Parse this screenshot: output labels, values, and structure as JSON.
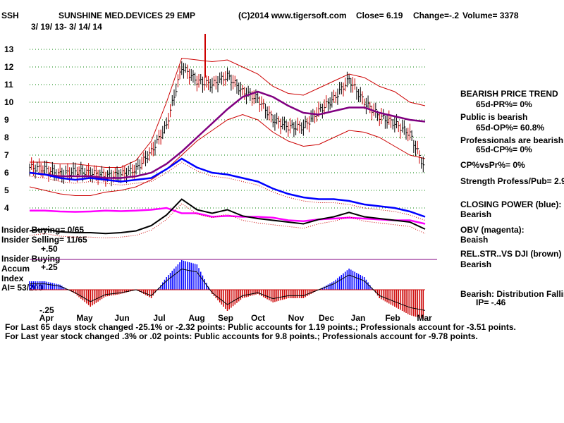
{
  "header": {
    "ticker": "SSH",
    "name": "SUNSHINE MED.DEVICES 29 EMP",
    "copyright": "(C)2014 www.tigersoft.com",
    "close": "Close=  6.19",
    "change": "Change=-.2",
    "volume": "Volume= 3378",
    "date_range": "3/ 19/ 13- 3/ 14/ 14"
  },
  "left_labels": {
    "insider_buying_count": "Insider Buying= 0/65",
    "insider_selling_count": "Insider Selling= 11/65",
    "insider_buying": "Insider Buying",
    "accum": "Accum",
    "index": "Index",
    "ai": "AI= 53/200",
    "plus50": "+.50",
    "plus25": "+.25",
    "minus25": "-.25"
  },
  "right_panel": {
    "bearish_price_trend": "BEARISH PRICE TREND",
    "pr": "65d-PR%= 0%",
    "public_bearish": "Public is bearish",
    "op": "65d-OP%= 60.8%",
    "professionals_bearish": "Professionals are bearish",
    "cp": "65d-CP%= 0%",
    "cp_vs_pr": "CP%vsPr%=  0%",
    "strength": "Strength Profess/Pub= 2.9",
    "closing_power": "CLOSING POWER (blue):",
    "closing_power_value": "Bearish",
    "obv": "OBV (magenta):",
    "obv_value": "Beaish",
    "relstr": "REL.STR..VS DJI (brown)",
    "relstr_value": "Bearish",
    "distribution": "Bearish: Distribution Falling",
    "ip": "IP= -.46"
  },
  "footer": {
    "line1": "For Last 65 days stock changed -25.1% or -2.32 points:  Public accounts for  1.19 points.;  Professionals account for -3.51 points.",
    "line2": "For Last year stock changed  .3% or  .02 points:  Public accounts for  9.8 points.;  Professionals account for -9.78 points."
  },
  "colors": {
    "price": "#000000",
    "up_bar": "#cc0000",
    "bands": "#cc0000",
    "ma": "#800080",
    "closing_power": "#0000ff",
    "obv": "#ff00ff",
    "relstr": "#000000",
    "accum_pos": "#0000ff",
    "accum_neg": "#cc0000",
    "grid": "#008000"
  },
  "chart_data": {
    "type": "line",
    "ylim": [
      4,
      13
    ],
    "y_ticks": [
      "13",
      "12",
      "11",
      "10",
      "9",
      "8",
      "7",
      "6",
      "5",
      "4"
    ],
    "x_ticks": [
      "Apr",
      "May",
      "Jun",
      "Jul",
      "Aug",
      "Sep",
      "Oct",
      "Nov",
      "Dec",
      "Jan",
      "Feb",
      "Mar"
    ],
    "price": {
      "x": [
        "2013-03-19",
        "2013-04-01",
        "2013-04-15",
        "2013-05-01",
        "2013-05-15",
        "2013-06-01",
        "2013-06-15",
        "2013-07-01",
        "2013-07-15",
        "2013-08-01",
        "2013-08-07",
        "2013-08-15",
        "2013-09-01",
        "2013-09-15",
        "2013-10-01",
        "2013-10-15",
        "2013-11-01",
        "2013-11-15",
        "2013-12-01",
        "2013-12-15",
        "2014-01-01",
        "2014-01-08",
        "2014-01-15",
        "2014-02-01",
        "2014-02-15",
        "2014-03-01",
        "2014-03-14"
      ],
      "close": [
        6.3,
        6.2,
        5.9,
        6.1,
        6.0,
        5.8,
        5.9,
        6.2,
        7.2,
        8.7,
        12.0,
        11.2,
        11.0,
        11.5,
        10.6,
        10.2,
        9.0,
        8.6,
        8.6,
        9.5,
        10.2,
        11.3,
        10.0,
        9.2,
        8.8,
        8.2,
        6.19
      ]
    },
    "moving_average": {
      "values": [
        6.0,
        5.9,
        5.8,
        5.8,
        5.8,
        5.7,
        5.7,
        5.8,
        6.0,
        6.5,
        7.2,
        8.0,
        8.8,
        9.6,
        10.3,
        10.6,
        10.3,
        9.8,
        9.4,
        9.3,
        9.5,
        9.7,
        9.7,
        9.4,
        9.2,
        9.0,
        8.9
      ]
    },
    "upper_band": {
      "values": [
        6.6,
        6.6,
        6.5,
        6.5,
        6.4,
        6.3,
        6.3,
        6.7,
        7.8,
        10.0,
        12.5,
        12.4,
        12.3,
        12.4,
        12.0,
        11.6,
        10.9,
        10.5,
        10.4,
        10.8,
        11.2,
        11.6,
        11.4,
        10.9,
        10.6,
        10.0,
        9.8
      ]
    },
    "lower_band": {
      "values": [
        5.2,
        5.0,
        4.8,
        4.7,
        4.7,
        4.9,
        5.0,
        5.2,
        5.6,
        6.2,
        7.0,
        7.8,
        8.4,
        9.0,
        9.3,
        9.0,
        8.3,
        7.8,
        7.5,
        7.6,
        8.0,
        8.4,
        8.3,
        8.0,
        7.5,
        7.0,
        6.8
      ]
    },
    "closing_power": {
      "values": [
        6.0,
        5.9,
        5.7,
        5.6,
        5.7,
        5.6,
        5.5,
        5.6,
        5.7,
        6.2,
        6.8,
        6.3,
        6.0,
        5.9,
        5.7,
        5.5,
        5.1,
        4.8,
        4.6,
        4.5,
        4.5,
        4.4,
        4.2,
        4.1,
        4.0,
        3.8,
        3.5
      ]
    },
    "obv": {
      "values": [
        3.85,
        3.85,
        3.8,
        3.78,
        3.8,
        3.85,
        3.82,
        3.85,
        3.9,
        4.0,
        3.7,
        3.7,
        3.5,
        3.55,
        3.5,
        3.5,
        3.45,
        3.3,
        3.25,
        3.35,
        3.4,
        3.45,
        3.4,
        3.35,
        3.3,
        3.3,
        3.1
      ]
    },
    "rel_strength": {
      "values": [
        2.7,
        2.8,
        2.65,
        2.6,
        2.6,
        2.55,
        2.6,
        2.7,
        3.0,
        3.6,
        4.5,
        3.9,
        3.7,
        3.9,
        3.55,
        3.4,
        3.3,
        3.2,
        3.1,
        3.35,
        3.5,
        3.75,
        3.5,
        3.4,
        3.3,
        3.2,
        2.8
      ]
    },
    "accumulation_index": {
      "values": [
        0.1,
        0.1,
        0.06,
        -0.05,
        -0.2,
        -0.08,
        -0.05,
        0.0,
        -0.1,
        0.15,
        0.35,
        0.3,
        -0.05,
        -0.25,
        -0.1,
        -0.05,
        -0.15,
        -0.1,
        -0.1,
        0.0,
        0.1,
        0.25,
        0.15,
        -0.1,
        -0.2,
        -0.3,
        -0.35
      ]
    }
  }
}
